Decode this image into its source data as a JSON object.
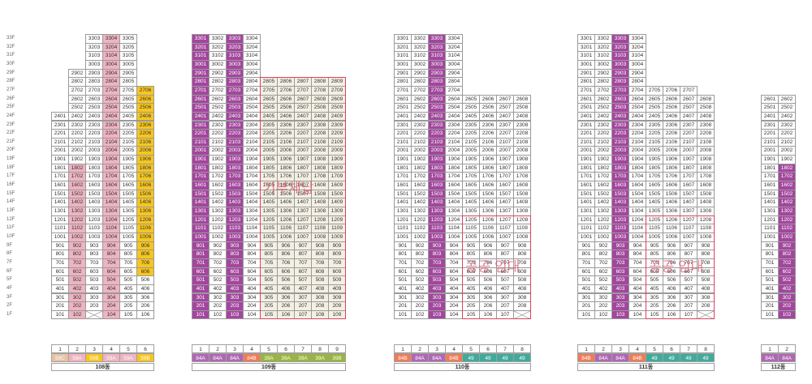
{
  "floors": [
    "33F",
    "32F",
    "31F",
    "30F",
    "29F",
    "28F",
    "27F",
    "26F",
    "25F",
    "24F",
    "23F",
    "22F",
    "21F",
    "20F",
    "19F",
    "18F",
    "17F",
    "16F",
    "15F",
    "14F",
    "13F",
    "12F",
    "11F",
    "10F",
    "9F",
    "8F",
    "7F",
    "6F",
    "5F",
    "4F",
    "3F",
    "2F",
    "1F"
  ],
  "colors": {
    "pink": "#efb3c2",
    "purple": "#a3469e",
    "yellow": "#f7c61e",
    "beige": "#f3f0e3",
    "white": "#ffffff",
    "orange": "#ef7c57",
    "teal": "#3fab9a",
    "olive": "#98b63a",
    "tan": "#e8c9a6",
    "lightpurple": "#b067b3"
  },
  "buildings": [
    {
      "name": "108동",
      "units": [
        "1",
        "2",
        "3",
        "4",
        "5",
        "6"
      ],
      "types": [
        {
          "label": "59C",
          "color": "#e6c3a3"
        },
        {
          "label": "59A",
          "color": "#efb3c2"
        },
        {
          "label": "59B",
          "color": "#f7c61e"
        },
        {
          "label": "59A",
          "color": "#efb3c2"
        },
        {
          "label": "59A",
          "color": "#efb3c2"
        },
        {
          "label": "59B",
          "color": "#f7c61e"
        }
      ],
      "columns": [
        {
          "top": 24,
          "bottom": 1,
          "color": "white"
        },
        {
          "top": 29,
          "bottom": 1,
          "color": "white",
          "pinkTo": 18
        },
        {
          "top": 33,
          "bottom": 1,
          "color": "white",
          "missing": [
            1
          ]
        },
        {
          "top": 33,
          "bottom": 1,
          "color": "pink"
        },
        {
          "top": 33,
          "bottom": 1,
          "color": "white"
        },
        {
          "top": 27,
          "bottom": 1,
          "color": "yellow",
          "whiteBelow": 5
        }
      ]
    },
    {
      "name": "109동",
      "units": [
        "1",
        "2",
        "3",
        "4",
        "5",
        "6",
        "7",
        "8",
        "9"
      ],
      "types": [
        {
          "label": "84A",
          "color": "#b067b3"
        },
        {
          "label": "84A",
          "color": "#b067b3"
        },
        {
          "label": "84A",
          "color": "#b067b3"
        },
        {
          "label": "84B",
          "color": "#ef7c57"
        },
        {
          "label": "39A",
          "color": "#98b63a"
        },
        {
          "label": "39A",
          "color": "#98b63a"
        },
        {
          "label": "39A",
          "color": "#98b63a"
        },
        {
          "label": "39A",
          "color": "#98b63a"
        },
        {
          "label": "39B",
          "color": "#98b63a"
        }
      ],
      "columns": [
        {
          "top": 33,
          "bottom": 1,
          "color": "purple"
        },
        {
          "top": 33,
          "bottom": 1,
          "color": "white"
        },
        {
          "top": 33,
          "bottom": 1,
          "color": "purple"
        },
        {
          "top": 33,
          "bottom": 1,
          "color": "white"
        },
        {
          "top": 28,
          "bottom": 1,
          "color": "beige"
        },
        {
          "top": 28,
          "bottom": 1,
          "color": "beige"
        },
        {
          "top": 28,
          "bottom": 1,
          "color": "beige"
        },
        {
          "top": 28,
          "bottom": 1,
          "color": "beige"
        },
        {
          "top": 28,
          "bottom": 1,
          "color": "beige"
        }
      ]
    },
    {
      "name": "110동",
      "units": [
        "1",
        "2",
        "3",
        "4",
        "5",
        "6",
        "7",
        "8"
      ],
      "types": [
        {
          "label": "84B",
          "color": "#ef7c57"
        },
        {
          "label": "84A",
          "color": "#b067b3"
        },
        {
          "label": "84A",
          "color": "#b067b3"
        },
        {
          "label": "84B",
          "color": "#ef7c57"
        },
        {
          "label": "49",
          "color": "#3fab9a"
        },
        {
          "label": "49",
          "color": "#3fab9a"
        },
        {
          "label": "49",
          "color": "#3fab9a"
        },
        {
          "label": "49",
          "color": "#3fab9a"
        }
      ],
      "columns": [
        {
          "top": 33,
          "bottom": 1,
          "color": "white"
        },
        {
          "top": 33,
          "bottom": 1,
          "color": "white"
        },
        {
          "top": 33,
          "bottom": 1,
          "color": "purple"
        },
        {
          "top": 33,
          "bottom": 1,
          "color": "white"
        },
        {
          "top": 26,
          "bottom": 1,
          "color": "white"
        },
        {
          "top": 26,
          "bottom": 1,
          "color": "white"
        },
        {
          "top": 26,
          "bottom": 1,
          "color": "white"
        },
        {
          "top": 26,
          "bottom": 1,
          "color": "white",
          "missing": [
            1
          ]
        }
      ]
    },
    {
      "name": "111동",
      "units": [
        "1",
        "2",
        "3",
        "4",
        "5",
        "6",
        "7",
        "8"
      ],
      "types": [
        {
          "label": "84B",
          "color": "#ef7c57"
        },
        {
          "label": "84A",
          "color": "#b067b3"
        },
        {
          "label": "84A",
          "color": "#b067b3"
        },
        {
          "label": "84B",
          "color": "#ef7c57"
        },
        {
          "label": "49",
          "color": "#3fab9a"
        },
        {
          "label": "49",
          "color": "#3fab9a"
        },
        {
          "label": "49",
          "color": "#3fab9a"
        },
        {
          "label": "49",
          "color": "#3fab9a"
        }
      ],
      "columns": [
        {
          "top": 33,
          "bottom": 1,
          "color": "white"
        },
        {
          "top": 33,
          "bottom": 1,
          "color": "white"
        },
        {
          "top": 33,
          "bottom": 1,
          "color": "purple"
        },
        {
          "top": 33,
          "bottom": 1,
          "color": "white"
        },
        {
          "top": 27,
          "bottom": 1,
          "color": "white"
        },
        {
          "top": 27,
          "bottom": 1,
          "color": "white"
        },
        {
          "top": 27,
          "bottom": 1,
          "color": "white"
        },
        {
          "top": 26,
          "bottom": 1,
          "color": "white",
          "missing": [
            1
          ]
        }
      ]
    },
    {
      "name": "112동",
      "units": [
        "1",
        "2"
      ],
      "types": [
        {
          "label": "84A",
          "color": "#b067b3"
        },
        {
          "label": "84A",
          "color": "#b067b3"
        }
      ],
      "columns": [
        {
          "top": 26,
          "bottom": 1,
          "color": "white"
        },
        {
          "top": 26,
          "bottom": 1,
          "color": "white",
          "purpleTo": 18
        }
      ]
    }
  ],
  "overlays": [
    {
      "label": "기부체납"
    },
    {
      "label": "공공 임대"
    },
    {
      "label": "공공 임대"
    }
  ]
}
